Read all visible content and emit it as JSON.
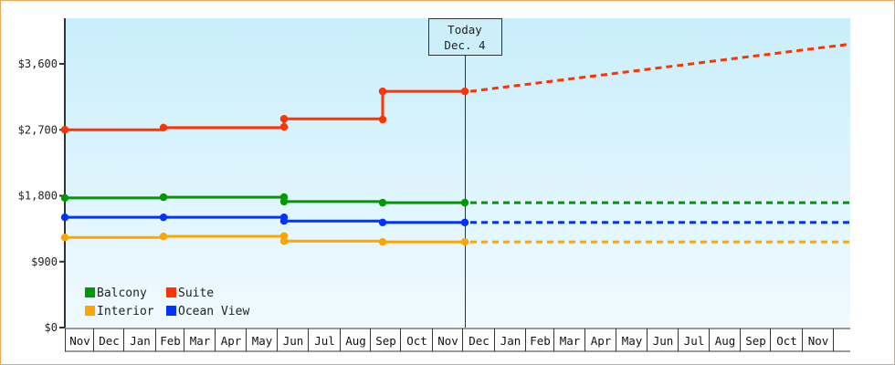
{
  "chart_data": {
    "type": "line",
    "title": "",
    "xlabel": "",
    "ylabel": "",
    "ylim": [
      0,
      4230
    ],
    "y_ticks": [
      {
        "value": 0,
        "label": "$0"
      },
      {
        "value": 900,
        "label": "$900"
      },
      {
        "value": 1800,
        "label": "$1,800"
      },
      {
        "value": 2700,
        "label": "$2,700"
      },
      {
        "value": 3600,
        "label": "$3,600"
      }
    ],
    "x_months": [
      "Nov",
      "Dec",
      "Jan",
      "Feb",
      "Mar",
      "Apr",
      "May",
      "Jun",
      "Jul",
      "Aug",
      "Sep",
      "Oct",
      "Nov",
      "Dec",
      "Jan",
      "Feb",
      "Mar",
      "Apr",
      "May",
      "Jun",
      "Jul",
      "Aug",
      "Sep",
      "Oct",
      "Nov"
    ],
    "grid": false,
    "legend_position": "lower-left inside",
    "today_marker": {
      "line1": "Today",
      "line2": "Dec. 4"
    },
    "series": [
      {
        "name": "Balcony",
        "color": "#009900",
        "history": [
          {
            "date": "Nov",
            "value": 1770
          },
          {
            "date": "Feb",
            "value": 1780
          },
          {
            "date": "Jun",
            "value": 1780
          },
          {
            "date": "Jun",
            "value": 1720
          },
          {
            "date": "Sep",
            "value": 1705
          },
          {
            "date": "Dec 4 (Today)",
            "value": 1705
          }
        ],
        "projection": [
          {
            "date": "Dec 4 (Today)",
            "value": 1705
          },
          {
            "date": "end",
            "value": 1705
          }
        ]
      },
      {
        "name": "Suite",
        "color": "#ff3300",
        "history": [
          {
            "date": "Nov",
            "value": 2700
          },
          {
            "date": "Feb",
            "value": 2730
          },
          {
            "date": "Jun",
            "value": 2740
          },
          {
            "date": "Jun",
            "value": 2850
          },
          {
            "date": "Sep",
            "value": 2840
          },
          {
            "date": "Sep",
            "value": 3225
          },
          {
            "date": "Dec 4 (Today)",
            "value": 3225
          }
        ],
        "projection": [
          {
            "date": "Dec 4 (Today)",
            "value": 3225
          },
          {
            "date": "end",
            "value": 3870
          }
        ]
      },
      {
        "name": "Interior",
        "color": "#ffa500",
        "history": [
          {
            "date": "Nov",
            "value": 1230
          },
          {
            "date": "Feb",
            "value": 1245
          },
          {
            "date": "Jun",
            "value": 1250
          },
          {
            "date": "Jun",
            "value": 1180
          },
          {
            "date": "Sep",
            "value": 1170
          },
          {
            "date": "Dec 4 (Today)",
            "value": 1170
          }
        ],
        "projection": [
          {
            "date": "Dec 4 (Today)",
            "value": 1170
          },
          {
            "date": "end",
            "value": 1170
          }
        ]
      },
      {
        "name": "Ocean View",
        "color": "#0033ff",
        "history": [
          {
            "date": "Nov",
            "value": 1505
          },
          {
            "date": "Feb",
            "value": 1505
          },
          {
            "date": "Jun",
            "value": 1505
          },
          {
            "date": "Jun",
            "value": 1455
          },
          {
            "date": "Sep",
            "value": 1435
          },
          {
            "date": "Dec 4 (Today)",
            "value": 1435
          }
        ],
        "projection": [
          {
            "date": "Dec 4 (Today)",
            "value": 1435
          },
          {
            "date": "end",
            "value": 1435
          }
        ]
      }
    ]
  },
  "legend": [
    {
      "label": "Balcony",
      "color": "#009900"
    },
    {
      "label": "Suite",
      "color": "#ff3300"
    },
    {
      "label": "Interior",
      "color": "#ffa500"
    },
    {
      "label": "Ocean View",
      "color": "#0033ff"
    }
  ],
  "today": {
    "line1": "Today",
    "line2": "Dec. 4"
  },
  "colors": {
    "frame_border": "#e8a860",
    "plot_bg_top": "#c8eefb",
    "plot_bg_bottom": "#f0faff",
    "axis": "#333333"
  }
}
